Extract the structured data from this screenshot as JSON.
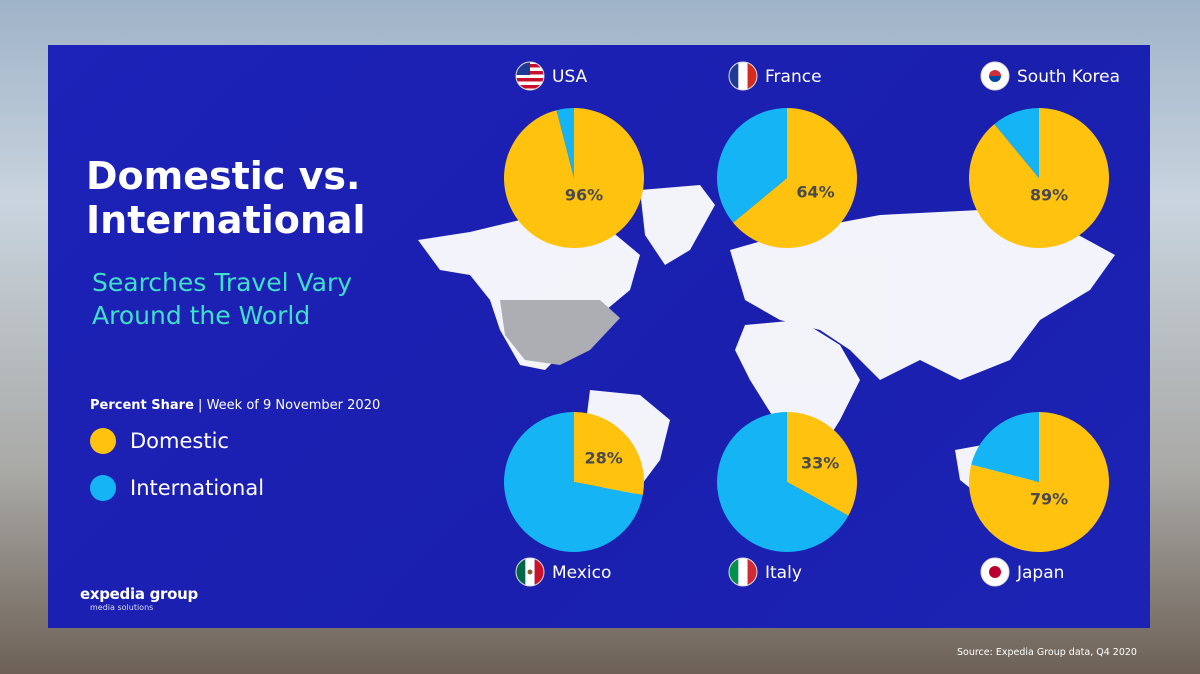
{
  "title_line1": "Domestic vs.",
  "title_line2": "International",
  "subtitle_line1": "Searches Travel Vary",
  "subtitle_line2": "Around the World",
  "share_label": "Percent Share",
  "share_sep": "|",
  "share_period": "Week of 9 November 2020",
  "logo": {
    "name": "expedia group",
    "tagline": "media solutions"
  },
  "source": "Source: Expedia Group data, Q4 2020",
  "colors": {
    "domestic": "#ffc20e",
    "international": "#14b4f5",
    "panel": "#1b20b2",
    "accent": "#3fe0c8"
  },
  "chart_data": {
    "type": "pie",
    "legend": [
      {
        "label": "Domestic",
        "color": "#ffc20e"
      },
      {
        "label": "International",
        "color": "#14b4f5"
      }
    ],
    "legend_placement": "left",
    "pies": [
      {
        "country": "USA",
        "flag": "usa-flag",
        "domestic": 96,
        "international": 4,
        "label": "96%"
      },
      {
        "country": "France",
        "flag": "france-flag",
        "domestic": 64,
        "international": 36,
        "label": "64%"
      },
      {
        "country": "South Korea",
        "flag": "south-korea-flag",
        "domestic": 89,
        "international": 11,
        "label": "89%"
      },
      {
        "country": "Mexico",
        "flag": "mexico-flag",
        "domestic": 28,
        "international": 72,
        "label": "28%"
      },
      {
        "country": "Italy",
        "flag": "italy-flag",
        "domestic": 33,
        "international": 67,
        "label": "33%"
      },
      {
        "country": "Japan",
        "flag": "japan-flag",
        "domestic": 79,
        "international": 21,
        "label": "79%"
      }
    ]
  }
}
